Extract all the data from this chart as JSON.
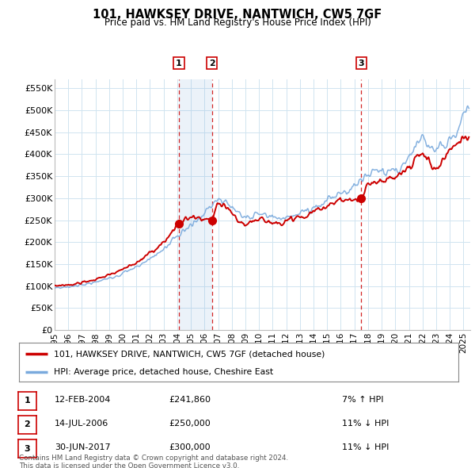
{
  "title": "101, HAWKSEY DRIVE, NANTWICH, CW5 7GF",
  "subtitle": "Price paid vs. HM Land Registry's House Price Index (HPI)",
  "legend_property": "101, HAWKSEY DRIVE, NANTWICH, CW5 7GF (detached house)",
  "legend_hpi": "HPI: Average price, detached house, Cheshire East",
  "property_color": "#cc0000",
  "hpi_color": "#7aaadd",
  "background_color": "#ffffff",
  "grid_color": "#d0e4f0",
  "sale_points": [
    {
      "label": "1",
      "date": 2004.12,
      "value": 241860
    },
    {
      "label": "2",
      "date": 2006.54,
      "value": 250000
    },
    {
      "label": "3",
      "date": 2017.5,
      "value": 300000
    }
  ],
  "sale_info": [
    {
      "num": "1",
      "date": "12-FEB-2004",
      "price": "£241,860",
      "pct": "7% ↑ HPI"
    },
    {
      "num": "2",
      "date": "14-JUL-2006",
      "price": "£250,000",
      "pct": "11% ↓ HPI"
    },
    {
      "num": "3",
      "date": "30-JUN-2017",
      "price": "£300,000",
      "pct": "11% ↓ HPI"
    }
  ],
  "footer1": "Contains HM Land Registry data © Crown copyright and database right 2024.",
  "footer2": "This data is licensed under the Open Government Licence v3.0.",
  "ylim": [
    0,
    570000
  ],
  "ytick_vals": [
    0,
    50000,
    100000,
    150000,
    200000,
    250000,
    300000,
    350000,
    400000,
    450000,
    500000,
    550000
  ],
  "ytick_labels": [
    "£0",
    "£50K",
    "£100K",
    "£150K",
    "£200K",
    "£250K",
    "£300K",
    "£350K",
    "£400K",
    "£450K",
    "£500K",
    "£550K"
  ],
  "xlim_start": 1995.0,
  "xlim_end": 2025.5,
  "xticks": [
    1995,
    1996,
    1997,
    1998,
    1999,
    2000,
    2001,
    2002,
    2003,
    2004,
    2005,
    2006,
    2007,
    2008,
    2009,
    2010,
    2011,
    2012,
    2013,
    2014,
    2015,
    2016,
    2017,
    2018,
    2019,
    2020,
    2021,
    2022,
    2023,
    2024,
    2025
  ]
}
